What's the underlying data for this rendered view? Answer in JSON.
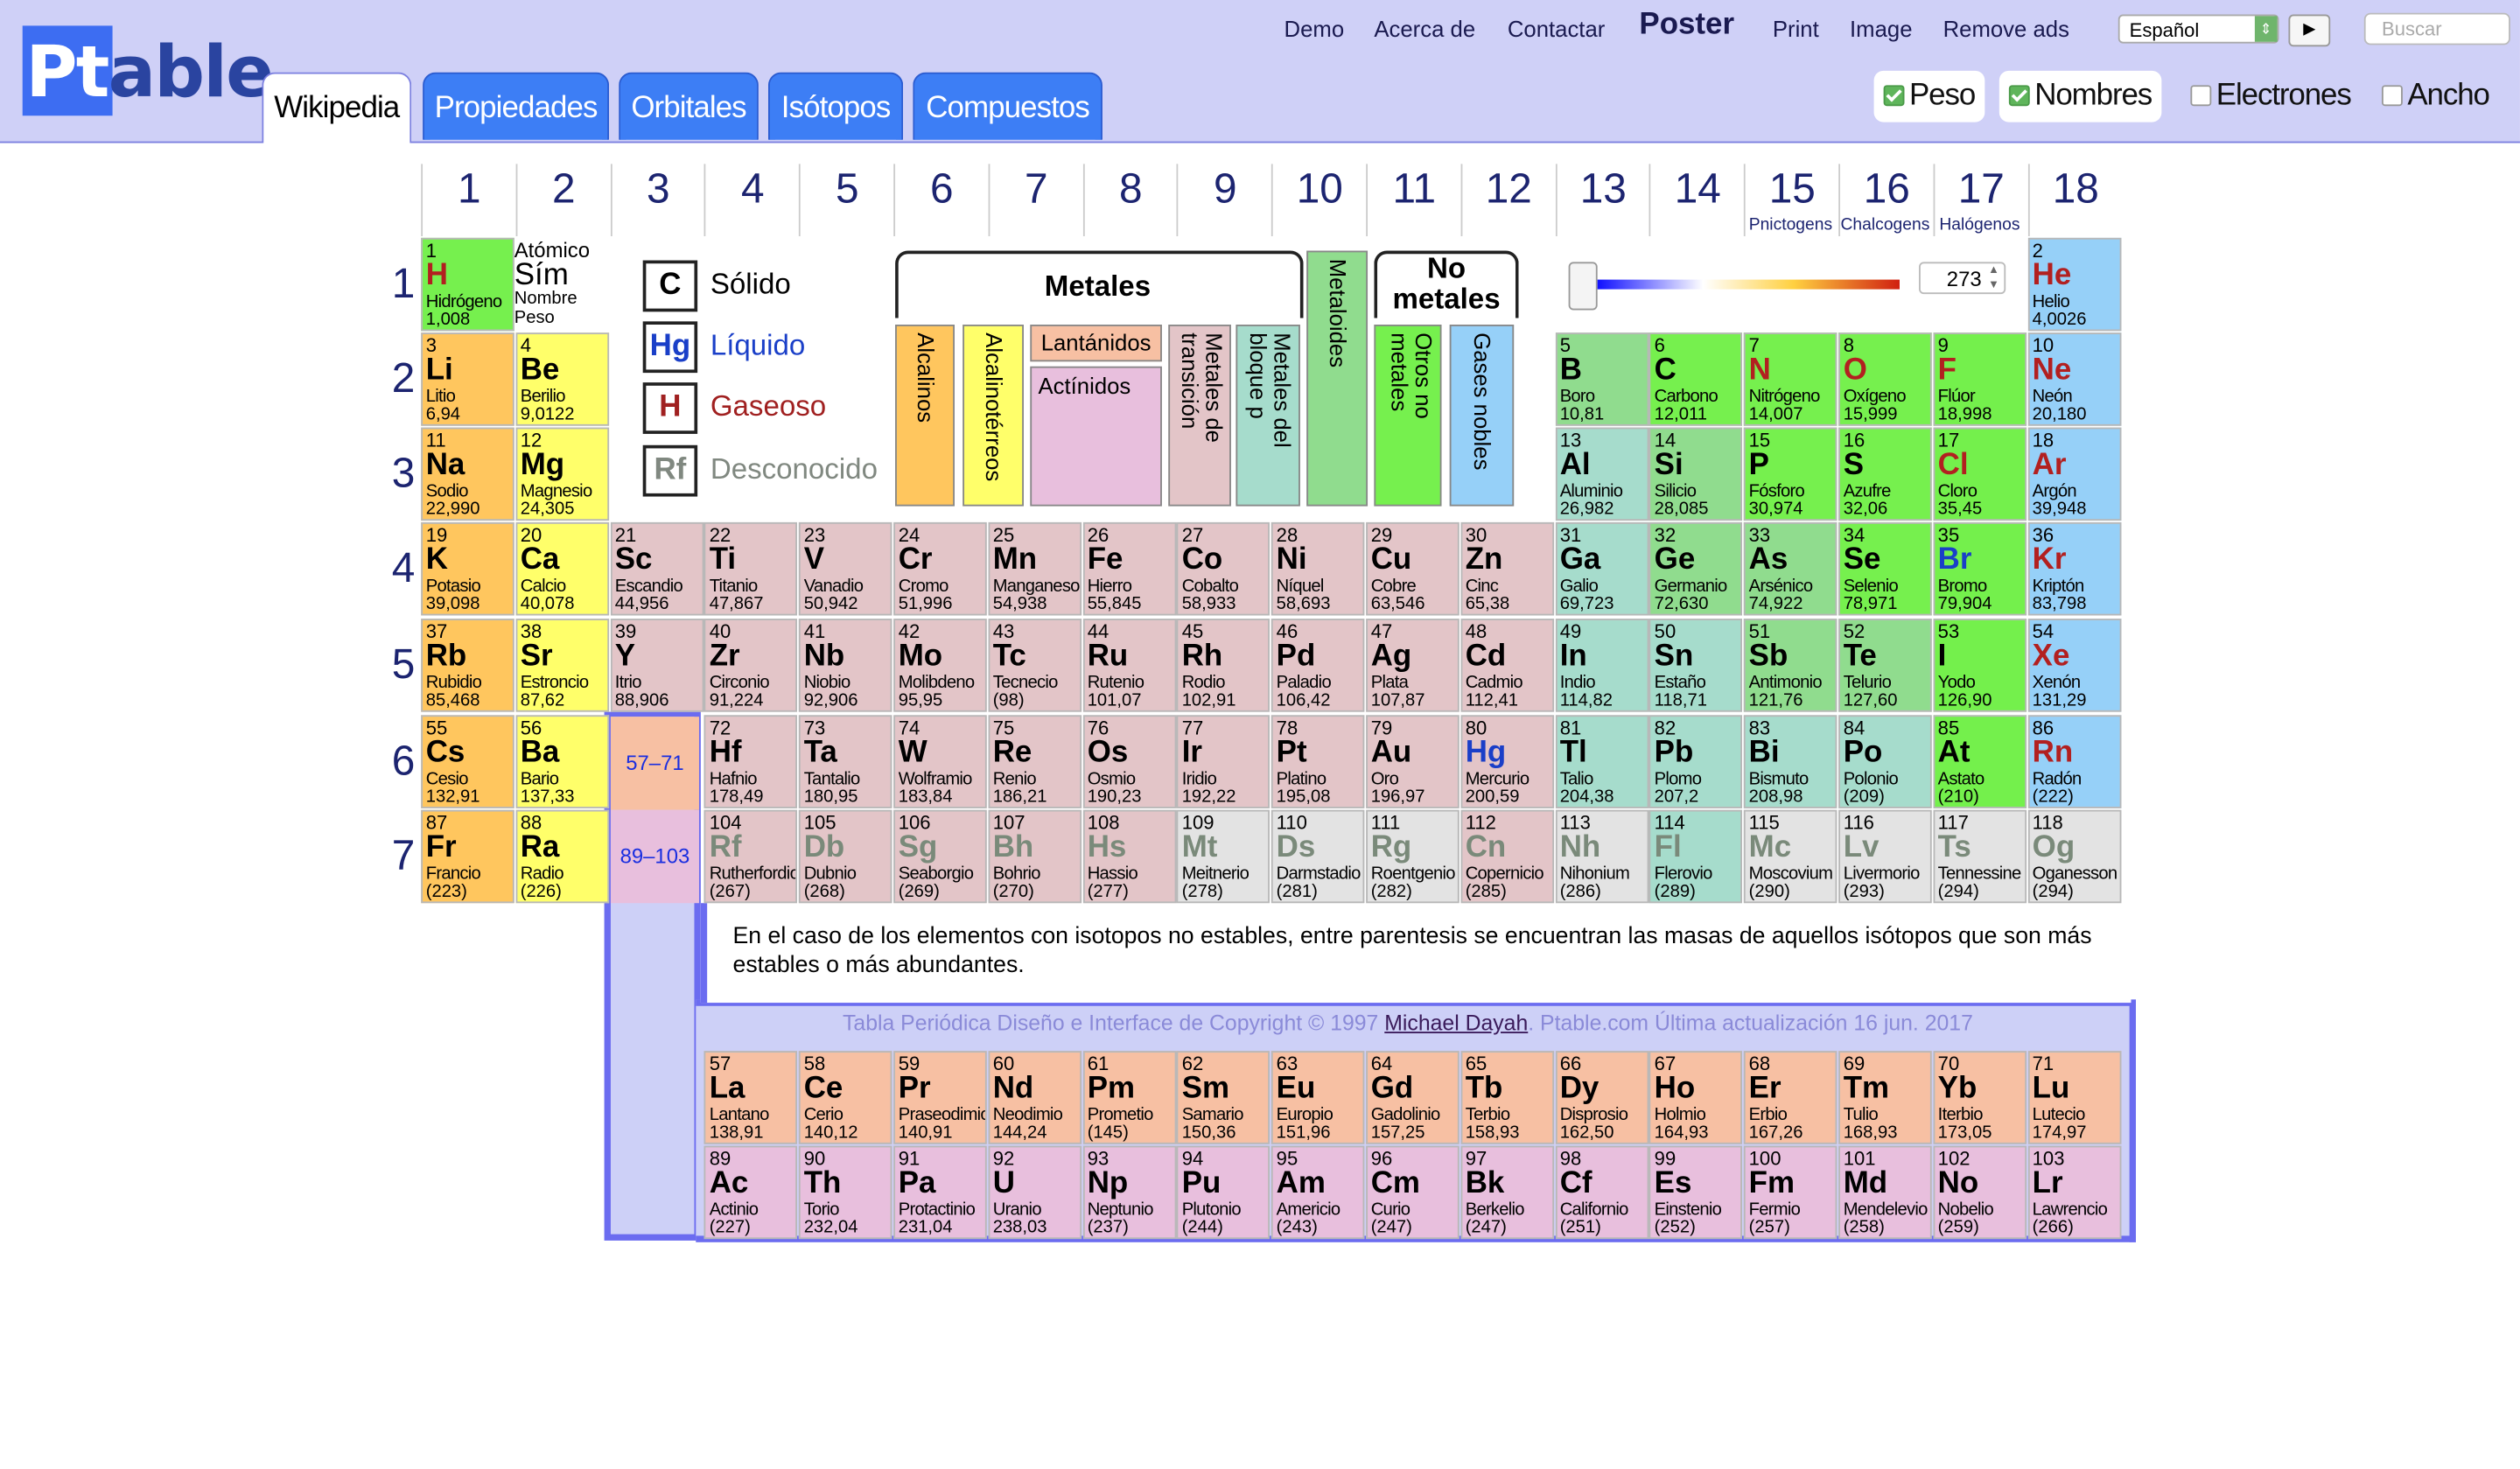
{
  "header": {
    "logo": {
      "pt": "Pt",
      "able": "able"
    },
    "tabs": [
      "Wikipedia",
      "Propiedades",
      "Orbitales",
      "Isótopos",
      "Compuestos"
    ],
    "links": [
      "Demo",
      "Acerca de",
      "Contactar",
      "Poster",
      "Print",
      "Image",
      "Remove ads"
    ],
    "language": "Español",
    "go_label": "▶",
    "search_placeholder": "Buscar",
    "toggles": [
      {
        "label": "Peso",
        "checked": true
      },
      {
        "label": "Nombres",
        "checked": true
      },
      {
        "label": "Electrones",
        "checked": false
      },
      {
        "label": "Ancho",
        "checked": false
      }
    ]
  },
  "groups": [
    "1",
    "2",
    "3",
    "4",
    "5",
    "6",
    "7",
    "8",
    "9",
    "10",
    "11",
    "12",
    "13",
    "14",
    "15",
    "16",
    "17",
    "18"
  ],
  "group_subtitles": {
    "15": "Pnictogens",
    "16": "Chalcogens",
    "17": "Halógenos"
  },
  "periods": [
    "1",
    "2",
    "3",
    "4",
    "5",
    "6",
    "7"
  ],
  "key_cell": {
    "n": "Atómico",
    "s": "Sím",
    "nm": "Nombre",
    "w": "Peso"
  },
  "states": [
    {
      "sym": "C",
      "label": "Sólido",
      "color": "#000000"
    },
    {
      "sym": "Hg",
      "label": "Líquido",
      "color": "#1a3fc8"
    },
    {
      "sym": "H",
      "label": "Gaseoso",
      "color": "#a02020"
    },
    {
      "sym": "Rf",
      "label": "Desconocido",
      "color": "#808880"
    }
  ],
  "categories": {
    "metales": "Metales",
    "no_metales": "No metales",
    "alcalinos": "Alcalinos",
    "alcalinoterreos": "Alcalinotérreos",
    "lantanidos": "Lantánidos",
    "actinidos": "Actínidos",
    "transicion": "Metales de transición",
    "bloque_p": "Metales del bloque p",
    "metaloides": "Metaloides",
    "otros_no_metales": "Otros no metales",
    "gases_nobles": "Gases nobles"
  },
  "temperature": "273",
  "range_labels": {
    "lan": "57–71",
    "act": "89–103"
  },
  "note": "En el caso de los elementos con isotopos no estables, entre parentesis se encuentran las masas de aquellos isótopos que son más estables o más abundantes.",
  "footer": {
    "before": "Tabla Periódica Diseño e Interface de Copyright © 1997 ",
    "author": "Michael Dayah",
    "after": ". Ptable.com Última actualización 16 jun. 2017"
  },
  "colors": {
    "alkali": "#ffc65e",
    "alkaline": "#ffff6a",
    "transition": "#e3c5c8",
    "post": "#a6dccc",
    "metalloid": "#90dc8e",
    "nonmetal": "#76f04e",
    "halogen": "#74f04c",
    "noble": "#96d0f8",
    "lanthanide": "#f7c0a3",
    "actinide": "#e8bfdd",
    "unknown": "#e3e3e3",
    "gas": "#b22020",
    "liquid": "#1a3fc8",
    "unknownText": "#7a8a7a"
  },
  "elements": [
    [
      1,
      "H",
      "Hidrógeno",
      "1,008",
      1,
      1,
      "nonmetal",
      "g"
    ],
    [
      2,
      "He",
      "Helio",
      "4,0026",
      1,
      18,
      "noble",
      "g"
    ],
    [
      3,
      "Li",
      "Litio",
      "6,94",
      2,
      1,
      "alkali",
      "s"
    ],
    [
      4,
      "Be",
      "Berilio",
      "9,0122",
      2,
      2,
      "alkaline",
      "s"
    ],
    [
      5,
      "B",
      "Boro",
      "10,81",
      2,
      13,
      "metalloid",
      "s"
    ],
    [
      6,
      "C",
      "Carbono",
      "12,011",
      2,
      14,
      "nonmetal",
      "s"
    ],
    [
      7,
      "N",
      "Nitrógeno",
      "14,007",
      2,
      15,
      "nonmetal",
      "g"
    ],
    [
      8,
      "O",
      "Oxígeno",
      "15,999",
      2,
      16,
      "nonmetal",
      "g"
    ],
    [
      9,
      "F",
      "Flúor",
      "18,998",
      2,
      17,
      "halogen",
      "g"
    ],
    [
      10,
      "Ne",
      "Neón",
      "20,180",
      2,
      18,
      "noble",
      "g"
    ],
    [
      11,
      "Na",
      "Sodio",
      "22,990",
      3,
      1,
      "alkali",
      "s"
    ],
    [
      12,
      "Mg",
      "Magnesio",
      "24,305",
      3,
      2,
      "alkaline",
      "s"
    ],
    [
      13,
      "Al",
      "Aluminio",
      "26,982",
      3,
      13,
      "post",
      "s"
    ],
    [
      14,
      "Si",
      "Silicio",
      "28,085",
      3,
      14,
      "metalloid",
      "s"
    ],
    [
      15,
      "P",
      "Fósforo",
      "30,974",
      3,
      15,
      "nonmetal",
      "s"
    ],
    [
      16,
      "S",
      "Azufre",
      "32,06",
      3,
      16,
      "nonmetal",
      "s"
    ],
    [
      17,
      "Cl",
      "Cloro",
      "35,45",
      3,
      17,
      "halogen",
      "g"
    ],
    [
      18,
      "Ar",
      "Argón",
      "39,948",
      3,
      18,
      "noble",
      "g"
    ],
    [
      19,
      "K",
      "Potasio",
      "39,098",
      4,
      1,
      "alkali",
      "s"
    ],
    [
      20,
      "Ca",
      "Calcio",
      "40,078",
      4,
      2,
      "alkaline",
      "s"
    ],
    [
      21,
      "Sc",
      "Escandio",
      "44,956",
      4,
      3,
      "transition",
      "s"
    ],
    [
      22,
      "Ti",
      "Titanio",
      "47,867",
      4,
      4,
      "transition",
      "s"
    ],
    [
      23,
      "V",
      "Vanadio",
      "50,942",
      4,
      5,
      "transition",
      "s"
    ],
    [
      24,
      "Cr",
      "Cromo",
      "51,996",
      4,
      6,
      "transition",
      "s"
    ],
    [
      25,
      "Mn",
      "Manganeso",
      "54,938",
      4,
      7,
      "transition",
      "s"
    ],
    [
      26,
      "Fe",
      "Hierro",
      "55,845",
      4,
      8,
      "transition",
      "s"
    ],
    [
      27,
      "Co",
      "Cobalto",
      "58,933",
      4,
      9,
      "transition",
      "s"
    ],
    [
      28,
      "Ni",
      "Níquel",
      "58,693",
      4,
      10,
      "transition",
      "s"
    ],
    [
      29,
      "Cu",
      "Cobre",
      "63,546",
      4,
      11,
      "transition",
      "s"
    ],
    [
      30,
      "Zn",
      "Cinc",
      "65,38",
      4,
      12,
      "transition",
      "s"
    ],
    [
      31,
      "Ga",
      "Galio",
      "69,723",
      4,
      13,
      "post",
      "s"
    ],
    [
      32,
      "Ge",
      "Germanio",
      "72,630",
      4,
      14,
      "metalloid",
      "s"
    ],
    [
      33,
      "As",
      "Arsénico",
      "74,922",
      4,
      15,
      "metalloid",
      "s"
    ],
    [
      34,
      "Se",
      "Selenio",
      "78,971",
      4,
      16,
      "nonmetal",
      "s"
    ],
    [
      35,
      "Br",
      "Bromo",
      "79,904",
      4,
      17,
      "halogen",
      "l"
    ],
    [
      36,
      "Kr",
      "Kriptón",
      "83,798",
      4,
      18,
      "noble",
      "g"
    ],
    [
      37,
      "Rb",
      "Rubidio",
      "85,468",
      5,
      1,
      "alkali",
      "s"
    ],
    [
      38,
      "Sr",
      "Estroncio",
      "87,62",
      5,
      2,
      "alkaline",
      "s"
    ],
    [
      39,
      "Y",
      "Itrio",
      "88,906",
      5,
      3,
      "transition",
      "s"
    ],
    [
      40,
      "Zr",
      "Circonio",
      "91,224",
      5,
      4,
      "transition",
      "s"
    ],
    [
      41,
      "Nb",
      "Niobio",
      "92,906",
      5,
      5,
      "transition",
      "s"
    ],
    [
      42,
      "Mo",
      "Molibdeno",
      "95,95",
      5,
      6,
      "transition",
      "s"
    ],
    [
      43,
      "Tc",
      "Tecnecio",
      "(98)",
      5,
      7,
      "transition",
      "s"
    ],
    [
      44,
      "Ru",
      "Rutenio",
      "101,07",
      5,
      8,
      "transition",
      "s"
    ],
    [
      45,
      "Rh",
      "Rodio",
      "102,91",
      5,
      9,
      "transition",
      "s"
    ],
    [
      46,
      "Pd",
      "Paladio",
      "106,42",
      5,
      10,
      "transition",
      "s"
    ],
    [
      47,
      "Ag",
      "Plata",
      "107,87",
      5,
      11,
      "transition",
      "s"
    ],
    [
      48,
      "Cd",
      "Cadmio",
      "112,41",
      5,
      12,
      "transition",
      "s"
    ],
    [
      49,
      "In",
      "Indio",
      "114,82",
      5,
      13,
      "post",
      "s"
    ],
    [
      50,
      "Sn",
      "Estaño",
      "118,71",
      5,
      14,
      "post",
      "s"
    ],
    [
      51,
      "Sb",
      "Antimonio",
      "121,76",
      5,
      15,
      "metalloid",
      "s"
    ],
    [
      52,
      "Te",
      "Telurio",
      "127,60",
      5,
      16,
      "metalloid",
      "s"
    ],
    [
      53,
      "I",
      "Yodo",
      "126,90",
      5,
      17,
      "halogen",
      "s"
    ],
    [
      54,
      "Xe",
      "Xenón",
      "131,29",
      5,
      18,
      "noble",
      "g"
    ],
    [
      55,
      "Cs",
      "Cesio",
      "132,91",
      6,
      1,
      "alkali",
      "s"
    ],
    [
      56,
      "Ba",
      "Bario",
      "137,33",
      6,
      2,
      "alkaline",
      "s"
    ],
    [
      72,
      "Hf",
      "Hafnio",
      "178,49",
      6,
      4,
      "transition",
      "s"
    ],
    [
      73,
      "Ta",
      "Tantalio",
      "180,95",
      6,
      5,
      "transition",
      "s"
    ],
    [
      74,
      "W",
      "Wolframio",
      "183,84",
      6,
      6,
      "transition",
      "s"
    ],
    [
      75,
      "Re",
      "Renio",
      "186,21",
      6,
      7,
      "transition",
      "s"
    ],
    [
      76,
      "Os",
      "Osmio",
      "190,23",
      6,
      8,
      "transition",
      "s"
    ],
    [
      77,
      "Ir",
      "Iridio",
      "192,22",
      6,
      9,
      "transition",
      "s"
    ],
    [
      78,
      "Pt",
      "Platino",
      "195,08",
      6,
      10,
      "transition",
      "s"
    ],
    [
      79,
      "Au",
      "Oro",
      "196,97",
      6,
      11,
      "transition",
      "s"
    ],
    [
      80,
      "Hg",
      "Mercurio",
      "200,59",
      6,
      12,
      "transition",
      "l"
    ],
    [
      81,
      "Tl",
      "Talio",
      "204,38",
      6,
      13,
      "post",
      "s"
    ],
    [
      82,
      "Pb",
      "Plomo",
      "207,2",
      6,
      14,
      "post",
      "s"
    ],
    [
      83,
      "Bi",
      "Bismuto",
      "208,98",
      6,
      15,
      "post",
      "s"
    ],
    [
      84,
      "Po",
      "Polonio",
      "(209)",
      6,
      16,
      "post",
      "s"
    ],
    [
      85,
      "At",
      "Astato",
      "(210)",
      6,
      17,
      "halogen",
      "s"
    ],
    [
      86,
      "Rn",
      "Radón",
      "(222)",
      6,
      18,
      "noble",
      "g"
    ],
    [
      87,
      "Fr",
      "Francio",
      "(223)",
      7,
      1,
      "alkali",
      "s"
    ],
    [
      88,
      "Ra",
      "Radio",
      "(226)",
      7,
      2,
      "alkaline",
      "s"
    ],
    [
      104,
      "Rf",
      "Rutherfordio",
      "(267)",
      7,
      4,
      "transition",
      "u"
    ],
    [
      105,
      "Db",
      "Dubnio",
      "(268)",
      7,
      5,
      "transition",
      "u"
    ],
    [
      106,
      "Sg",
      "Seaborgio",
      "(269)",
      7,
      6,
      "transition",
      "u"
    ],
    [
      107,
      "Bh",
      "Bohrio",
      "(270)",
      7,
      7,
      "transition",
      "u"
    ],
    [
      108,
      "Hs",
      "Hassio",
      "(277)",
      7,
      8,
      "transition",
      "u"
    ],
    [
      109,
      "Mt",
      "Meitnerio",
      "(278)",
      7,
      9,
      "unknown",
      "u"
    ],
    [
      110,
      "Ds",
      "Darmstadio",
      "(281)",
      7,
      10,
      "unknown",
      "u"
    ],
    [
      111,
      "Rg",
      "Roentgenio",
      "(282)",
      7,
      11,
      "unknown",
      "u"
    ],
    [
      112,
      "Cn",
      "Copernicio",
      "(285)",
      7,
      12,
      "transition",
      "u"
    ],
    [
      113,
      "Nh",
      "Nihonium",
      "(286)",
      7,
      13,
      "unknown",
      "u"
    ],
    [
      114,
      "Fl",
      "Flerovio",
      "(289)",
      7,
      14,
      "post",
      "u"
    ],
    [
      115,
      "Mc",
      "Moscovium",
      "(290)",
      7,
      15,
      "unknown",
      "u"
    ],
    [
      116,
      "Lv",
      "Livermorio",
      "(293)",
      7,
      16,
      "unknown",
      "u"
    ],
    [
      117,
      "Ts",
      "Tennessine",
      "(294)",
      7,
      17,
      "unknown",
      "u"
    ],
    [
      118,
      "Og",
      "Oganesson",
      "(294)",
      7,
      18,
      "unknown",
      "u"
    ],
    [
      57,
      "La",
      "Lantano",
      "138,91",
      9,
      4,
      "lanthanide",
      "s"
    ],
    [
      58,
      "Ce",
      "Cerio",
      "140,12",
      9,
      5,
      "lanthanide",
      "s"
    ],
    [
      59,
      "Pr",
      "Praseodimio",
      "140,91",
      9,
      6,
      "lanthanide",
      "s"
    ],
    [
      60,
      "Nd",
      "Neodimio",
      "144,24",
      9,
      7,
      "lanthanide",
      "s"
    ],
    [
      61,
      "Pm",
      "Prometio",
      "(145)",
      9,
      8,
      "lanthanide",
      "s"
    ],
    [
      62,
      "Sm",
      "Samario",
      "150,36",
      9,
      9,
      "lanthanide",
      "s"
    ],
    [
      63,
      "Eu",
      "Europio",
      "151,96",
      9,
      10,
      "lanthanide",
      "s"
    ],
    [
      64,
      "Gd",
      "Gadolinio",
      "157,25",
      9,
      11,
      "lanthanide",
      "s"
    ],
    [
      65,
      "Tb",
      "Terbio",
      "158,93",
      9,
      12,
      "lanthanide",
      "s"
    ],
    [
      66,
      "Dy",
      "Disprosio",
      "162,50",
      9,
      13,
      "lanthanide",
      "s"
    ],
    [
      67,
      "Ho",
      "Holmio",
      "164,93",
      9,
      14,
      "lanthanide",
      "s"
    ],
    [
      68,
      "Er",
      "Erbio",
      "167,26",
      9,
      15,
      "lanthanide",
      "s"
    ],
    [
      69,
      "Tm",
      "Tulio",
      "168,93",
      9,
      16,
      "lanthanide",
      "s"
    ],
    [
      70,
      "Yb",
      "Iterbio",
      "173,05",
      9,
      17,
      "lanthanide",
      "s"
    ],
    [
      71,
      "Lu",
      "Lutecio",
      "174,97",
      9,
      18,
      "lanthanide",
      "s"
    ],
    [
      89,
      "Ac",
      "Actinio",
      "(227)",
      10,
      4,
      "actinide",
      "s"
    ],
    [
      90,
      "Th",
      "Torio",
      "232,04",
      10,
      5,
      "actinide",
      "s"
    ],
    [
      91,
      "Pa",
      "Protactinio",
      "231,04",
      10,
      6,
      "actinide",
      "s"
    ],
    [
      92,
      "U",
      "Uranio",
      "238,03",
      10,
      7,
      "actinide",
      "s"
    ],
    [
      93,
      "Np",
      "Neptunio",
      "(237)",
      10,
      8,
      "actinide",
      "s"
    ],
    [
      94,
      "Pu",
      "Plutonio",
      "(244)",
      10,
      9,
      "actinide",
      "s"
    ],
    [
      95,
      "Am",
      "Americio",
      "(243)",
      10,
      10,
      "actinide",
      "s"
    ],
    [
      96,
      "Cm",
      "Curio",
      "(247)",
      10,
      11,
      "actinide",
      "s"
    ],
    [
      97,
      "Bk",
      "Berkelio",
      "(247)",
      10,
      12,
      "actinide",
      "s"
    ],
    [
      98,
      "Cf",
      "Californio",
      "(251)",
      10,
      13,
      "actinide",
      "s"
    ],
    [
      99,
      "Es",
      "Einstenio",
      "(252)",
      10,
      14,
      "actinide",
      "s"
    ],
    [
      100,
      "Fm",
      "Fermio",
      "(257)",
      10,
      15,
      "actinide",
      "s"
    ],
    [
      101,
      "Md",
      "Mendelevio",
      "(258)",
      10,
      16,
      "actinide",
      "s"
    ],
    [
      102,
      "No",
      "Nobelio",
      "(259)",
      10,
      17,
      "actinide",
      "s"
    ],
    [
      103,
      "Lr",
      "Lawrencio",
      "(266)",
      10,
      18,
      "actinide",
      "s"
    ]
  ]
}
